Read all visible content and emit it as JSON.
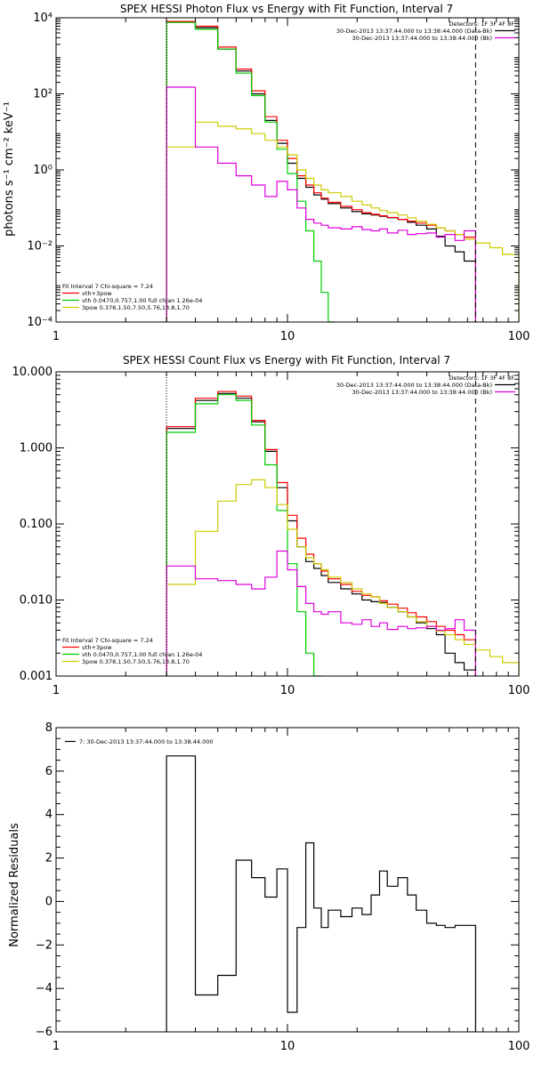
{
  "chart_data": [
    {
      "type": "line",
      "title": "SPEX HESSI Photon Flux vs Energy with Fit Function, Interval 7",
      "ylabel": "photons s⁻¹ cm⁻² keV⁻¹",
      "xscale": "log",
      "yscale": "log",
      "xlim": [
        1,
        100
      ],
      "ylim": [
        0.0001,
        10000
      ],
      "x_ticks": [
        {
          "v": 1,
          "t": "1"
        },
        {
          "v": 10,
          "t": "10"
        },
        {
          "v": 100,
          "t": "100"
        }
      ],
      "y_ticks": [
        {
          "v": 0.0001,
          "t": "10⁻⁴"
        },
        {
          "v": 0.01,
          "t": "10⁻²"
        },
        {
          "v": 1,
          "t": "10⁰"
        },
        {
          "v": 100,
          "t": "10²"
        },
        {
          "v": 10000,
          "t": "10⁴"
        }
      ],
      "vlines": [
        {
          "x": 3,
          "style": "dotted",
          "color": "#000000"
        },
        {
          "x": 65,
          "style": "dashed",
          "color": "#000000"
        }
      ],
      "legend_tr": {
        "header": "Detectors: 1F 3F 4F 8F",
        "entries": [
          {
            "text": "30-Dec-2013 13:37:44.000 to 13:38:44.000 (Data-Bk)",
            "color": "#000000"
          },
          {
            "text": "30-Dec-2013 13:37:44.000 to 13:38:44.000 (Bk)",
            "color": "#dd00dd"
          }
        ]
      },
      "legend_bl": {
        "header": "Fit Interval 7   Chi-square = 7.24",
        "entries": [
          {
            "text": "vth+3pow",
            "color": "#ff0000"
          },
          {
            "text": "vth 0.0470,0.757,1.00  full chian 1.26e-04",
            "color": "#00cc00"
          },
          {
            "text": "3pow 0.378,1.50,7.50,5.76,13.8,1.70",
            "color": "#cccc00"
          }
        ]
      },
      "series": [
        {
          "color": "#000000",
          "edges": [
            3,
            4,
            5,
            6,
            7,
            8,
            9,
            10,
            11,
            12,
            13,
            14,
            15,
            17,
            19,
            21,
            23,
            25,
            27,
            30,
            33,
            36,
            40,
            44,
            48,
            53,
            58,
            65
          ],
          "values": [
            8000,
            5500,
            1500,
            400,
            100,
            20,
            5,
            1.5,
            0.6,
            0.35,
            0.22,
            0.17,
            0.13,
            0.1,
            0.08,
            0.07,
            0.065,
            0.06,
            0.055,
            0.05,
            0.042,
            0.035,
            0.028,
            0.018,
            0.01,
            0.007,
            0.004
          ]
        },
        {
          "color": "#ff0000",
          "edges": [
            3,
            4,
            5,
            6,
            7,
            8,
            9,
            10,
            11,
            12,
            13,
            14,
            15,
            17,
            19,
            21,
            23,
            25,
            27,
            30,
            33,
            36,
            40,
            44,
            48,
            53,
            58,
            65
          ],
          "values": [
            8000,
            6000,
            1700,
            450,
            120,
            25,
            6,
            2,
            0.7,
            0.4,
            0.25,
            0.18,
            0.14,
            0.11,
            0.09,
            0.075,
            0.068,
            0.062,
            0.056,
            0.05,
            0.045,
            0.04,
            0.035,
            0.03,
            0.025,
            0.02,
            0.017
          ]
        },
        {
          "color": "#00cc00",
          "edges": [
            3,
            4,
            5,
            6,
            7,
            8,
            9,
            10,
            11,
            12,
            13,
            14,
            15,
            16
          ],
          "values": [
            7500,
            5000,
            1500,
            350,
            90,
            18,
            3.5,
            0.8,
            0.15,
            0.025,
            0.004,
            0.0006,
            0.0001
          ]
        },
        {
          "color": "#cccc00",
          "edges": [
            3,
            4,
            5,
            6,
            7,
            8,
            9,
            10,
            11,
            12,
            13,
            14,
            15,
            17,
            19,
            21,
            23,
            25,
            27,
            30,
            33,
            36,
            40,
            44,
            48,
            53,
            58,
            65,
            75,
            85,
            100
          ],
          "values": [
            4,
            18,
            14,
            12,
            9,
            6,
            4,
            2.5,
            1,
            0.6,
            0.4,
            0.3,
            0.25,
            0.2,
            0.15,
            0.12,
            0.1,
            0.085,
            0.075,
            0.065,
            0.055,
            0.045,
            0.037,
            0.03,
            0.025,
            0.02,
            0.015,
            0.012,
            0.009,
            0.006
          ]
        },
        {
          "color": "#dd00dd",
          "edges": [
            3,
            4,
            5,
            6,
            7,
            8,
            9,
            10,
            11,
            12,
            13,
            14,
            15,
            17,
            19,
            21,
            23,
            25,
            27,
            30,
            33,
            36,
            40,
            44,
            48,
            53,
            58,
            65
          ],
          "values": [
            150,
            4,
            1.5,
            0.7,
            0.4,
            0.2,
            0.5,
            0.3,
            0.1,
            0.05,
            0.04,
            0.035,
            0.03,
            0.028,
            0.032,
            0.027,
            0.025,
            0.028,
            0.022,
            0.026,
            0.02,
            0.021,
            0.022,
            0.017,
            0.02,
            0.014,
            0.025
          ]
        }
      ]
    },
    {
      "type": "line",
      "title": "SPEX HESSI Count Flux vs Energy with Fit Function, Interval 7",
      "ylabel": "",
      "xscale": "log",
      "yscale": "log",
      "xlim": [
        1,
        100
      ],
      "ylim": [
        0.001,
        10
      ],
      "x_ticks": [
        {
          "v": 1,
          "t": "1"
        },
        {
          "v": 10,
          "t": "10"
        },
        {
          "v": 100,
          "t": "100"
        }
      ],
      "y_ticks": [
        {
          "v": 0.001,
          "t": "0.001"
        },
        {
          "v": 0.01,
          "t": "0.010"
        },
        {
          "v": 0.1,
          "t": "0.100"
        },
        {
          "v": 1,
          "t": "1.000"
        },
        {
          "v": 10,
          "t": "10.000"
        }
      ],
      "vlines": [
        {
          "x": 3,
          "style": "dotted",
          "color": "#000000"
        },
        {
          "x": 65,
          "style": "dashed",
          "color": "#000000"
        }
      ],
      "legend_tr": {
        "header": "Detectors: 1F 3F 4F 8F",
        "entries": [
          {
            "text": "30-Dec-2013 13:37:44.000 to 13:38:44.000 (Data-Bk)",
            "color": "#000000"
          },
          {
            "text": "30-Dec-2013 13:37:44.000 to 13:38:44.000 (Bk)",
            "color": "#dd00dd"
          }
        ]
      },
      "legend_bl": {
        "header": "Fit Interval 7   Chi-square = 7.24",
        "entries": [
          {
            "text": "vth+3pow",
            "color": "#ff0000"
          },
          {
            "text": "vth 0.0470,0.757,1.00  full chian 1.26e-04",
            "color": "#00cc00"
          },
          {
            "text": "3pow 0.378,1.50,7.50,5.76,13.8,1.70",
            "color": "#cccc00"
          }
        ]
      },
      "series": [
        {
          "color": "#000000",
          "edges": [
            3,
            4,
            5,
            6,
            7,
            8,
            9,
            10,
            11,
            12,
            13,
            14,
            15,
            17,
            19,
            21,
            23,
            25,
            27,
            30,
            33,
            36,
            40,
            44,
            48,
            53,
            58,
            65
          ],
          "values": [
            1.8,
            4.2,
            5.2,
            4.5,
            2.2,
            0.9,
            0.3,
            0.11,
            0.05,
            0.032,
            0.026,
            0.021,
            0.017,
            0.014,
            0.012,
            0.01,
            0.0095,
            0.0093,
            0.008,
            0.007,
            0.006,
            0.005,
            0.0042,
            0.0035,
            0.002,
            0.0015,
            0.0012
          ]
        },
        {
          "color": "#ff0000",
          "edges": [
            3,
            4,
            5,
            6,
            7,
            8,
            9,
            10,
            11,
            12,
            13,
            14,
            15,
            17,
            19,
            21,
            23,
            25,
            27,
            30,
            33,
            36,
            40,
            44,
            48,
            53,
            58,
            65
          ],
          "values": [
            1.9,
            4.5,
            5.5,
            4.8,
            2.3,
            0.95,
            0.35,
            0.13,
            0.065,
            0.04,
            0.03,
            0.024,
            0.019,
            0.016,
            0.013,
            0.0115,
            0.011,
            0.0098,
            0.0088,
            0.0078,
            0.0068,
            0.006,
            0.0052,
            0.0045,
            0.004,
            0.0035,
            0.003
          ]
        },
        {
          "color": "#00cc00",
          "edges": [
            3,
            4,
            5,
            6,
            7,
            8,
            9,
            10,
            11,
            12,
            13,
            14
          ],
          "values": [
            1.6,
            3.8,
            5,
            4.2,
            2,
            0.6,
            0.15,
            0.03,
            0.007,
            0.002,
            0.001
          ]
        },
        {
          "color": "#cccc00",
          "edges": [
            3,
            4,
            5,
            6,
            7,
            8,
            9,
            10,
            11,
            12,
            13,
            14,
            15,
            17,
            19,
            21,
            23,
            25,
            27,
            30,
            33,
            36,
            40,
            44,
            48,
            53,
            58,
            65,
            75,
            85,
            100
          ],
          "values": [
            0.016,
            0.08,
            0.2,
            0.33,
            0.38,
            0.3,
            0.18,
            0.085,
            0.05,
            0.036,
            0.03,
            0.025,
            0.02,
            0.017,
            0.014,
            0.012,
            0.011,
            0.009,
            0.008,
            0.007,
            0.006,
            0.0052,
            0.0045,
            0.0039,
            0.0035,
            0.003,
            0.0026,
            0.0022,
            0.0018,
            0.0015
          ]
        },
        {
          "color": "#dd00dd",
          "edges": [
            3,
            4,
            5,
            6,
            7,
            8,
            9,
            10,
            11,
            12,
            13,
            14,
            15,
            17,
            19,
            21,
            23,
            25,
            27,
            30,
            33,
            36,
            40,
            44,
            48,
            53,
            58,
            65
          ],
          "values": [
            0.028,
            0.019,
            0.018,
            0.016,
            0.014,
            0.02,
            0.044,
            0.025,
            0.015,
            0.009,
            0.007,
            0.0065,
            0.007,
            0.005,
            0.0048,
            0.0055,
            0.0045,
            0.005,
            0.0041,
            0.0045,
            0.0042,
            0.0043,
            0.0045,
            0.004,
            0.0042,
            0.0055,
            0.004
          ]
        }
      ]
    },
    {
      "type": "line",
      "title": "",
      "ylabel": "Normalized Residuals",
      "xscale": "log",
      "yscale": "linear",
      "xlim": [
        1,
        100
      ],
      "ylim": [
        -6,
        8
      ],
      "x_ticks": [
        {
          "v": 1,
          "t": "1"
        },
        {
          "v": 10,
          "t": "10"
        },
        {
          "v": 100,
          "t": "100"
        }
      ],
      "y_ticks": [
        {
          "v": -6,
          "t": "−6"
        },
        {
          "v": -4,
          "t": "−4"
        },
        {
          "v": -2,
          "t": "−2"
        },
        {
          "v": 0,
          "t": "0"
        },
        {
          "v": 2,
          "t": "2"
        },
        {
          "v": 4,
          "t": "4"
        },
        {
          "v": 6,
          "t": "6"
        },
        {
          "v": 8,
          "t": "8"
        }
      ],
      "vlines": [],
      "legend_tl": {
        "entries": [
          {
            "text": "7: 30-Dec-2013 13:37:44.000 to 13:38:44.000",
            "color": "#000000"
          }
        ]
      },
      "series": [
        {
          "color": "#000000",
          "close_to_bottom": true,
          "edges": [
            3,
            4,
            5,
            6,
            7,
            8,
            9,
            10,
            11,
            12,
            13,
            14,
            15,
            17,
            19,
            21,
            23,
            25,
            27,
            30,
            33,
            36,
            40,
            44,
            48,
            53,
            58,
            65
          ],
          "values": [
            6.7,
            -4.3,
            -3.4,
            1.9,
            1.1,
            0.2,
            1.5,
            -5.1,
            -1.2,
            2.7,
            -0.3,
            -1.2,
            -0.4,
            -0.7,
            -0.3,
            -0.6,
            0.3,
            1.4,
            0.7,
            1.1,
            0.3,
            -0.4,
            -1.0,
            -1.1,
            -1.2,
            -1.1,
            -1.1
          ]
        }
      ]
    }
  ]
}
